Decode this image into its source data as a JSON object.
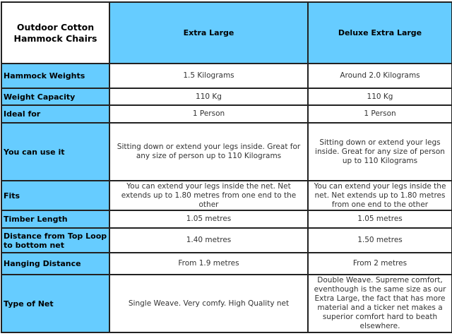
{
  "table": {
    "corner_title": "Outdoor Cotton Hammock Chairs",
    "columns": [
      "Extra Large",
      "Deluxe Extra Large"
    ],
    "rows": [
      {
        "label": "Hammock Weights",
        "values": [
          "1.5 Kilograms",
          "Around 2.0 Kilograms"
        ]
      },
      {
        "label": "Weight Capacity",
        "values": [
          "110 Kg",
          "110 Kg"
        ]
      },
      {
        "label": "Ideal for",
        "values": [
          "1 Person",
          "1 Person"
        ]
      },
      {
        "label": "You can use it",
        "values": [
          "Sitting down or extend your legs inside. Great for any size of person up to 110 Kilograms",
          "Sitting down or extend your legs inside. Great for any size of person up to 110 Kilograms"
        ]
      },
      {
        "label": "Fits",
        "values": [
          "You can extend your legs inside the net. Net extends up to 1.80 metres from one end to the other",
          "You can extend your legs inside the net. Net extends up to 1.80 metres from one end to the other"
        ]
      },
      {
        "label": "Timber Length",
        "values": [
          "1.05 metres",
          "1.05 metres"
        ]
      },
      {
        "label": "Distance from Top Loop to bottom net",
        "values": [
          "1.40 metres",
          "1.50 metres"
        ]
      },
      {
        "label": "Hanging Distance",
        "values": [
          "From 1.9 metres",
          "From 2 metres"
        ]
      },
      {
        "label": "Type of Net",
        "values": [
          "Single Weave. Very comfy. High Quality net",
          "Double Weave. Supreme comfort, eventhough is the same size as our Extra Large, the fact that has more material and a ticker net makes a superior comfort hard to beath elsewhere."
        ]
      }
    ],
    "colors": {
      "header_bg": "#66ccff",
      "border": "#222222"
    }
  }
}
